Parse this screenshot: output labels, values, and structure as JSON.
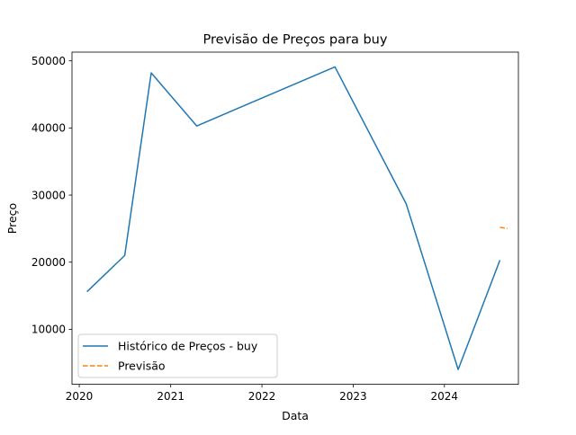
{
  "chart_data": {
    "type": "line",
    "title": "Previsão de Preços para buy",
    "xlabel": "Data",
    "ylabel": "Preço",
    "x_axis_kind": "date",
    "xlim": [
      "2019-12-03",
      "2024-10-23"
    ],
    "ylim": [
      1800,
      51300
    ],
    "x_ticks": [
      {
        "date": "2020-01-01",
        "label": "2020"
      },
      {
        "date": "2021-01-01",
        "label": "2021"
      },
      {
        "date": "2022-01-01",
        "label": "2022"
      },
      {
        "date": "2023-01-01",
        "label": "2023"
      },
      {
        "date": "2024-01-01",
        "label": "2024"
      }
    ],
    "y_ticks": [
      {
        "value": 10000,
        "label": "10000"
      },
      {
        "value": 20000,
        "label": "20000"
      },
      {
        "value": 30000,
        "label": "30000"
      },
      {
        "value": 40000,
        "label": "40000"
      },
      {
        "value": 50000,
        "label": "50000"
      }
    ],
    "grid": false,
    "legend_position": "lower-left",
    "series": [
      {
        "name": "Histórico de Preços - buy",
        "color": "#1f77b4",
        "style": "solid",
        "points": [
          {
            "x": "2020-02-01",
            "y": 15600
          },
          {
            "x": "2020-07-01",
            "y": 21000
          },
          {
            "x": "2020-10-15",
            "y": 48200
          },
          {
            "x": "2021-04-15",
            "y": 40300
          },
          {
            "x": "2022-10-20",
            "y": 49100
          },
          {
            "x": "2023-08-01",
            "y": 28700
          },
          {
            "x": "2024-02-25",
            "y": 4000
          },
          {
            "x": "2024-08-10",
            "y": 20300
          }
        ]
      },
      {
        "name": "Previsão",
        "color": "#ff7f0e",
        "style": "dashed",
        "points": [
          {
            "x": "2024-08-10",
            "y": 25200
          },
          {
            "x": "2024-09-10",
            "y": 25000
          }
        ]
      }
    ]
  }
}
